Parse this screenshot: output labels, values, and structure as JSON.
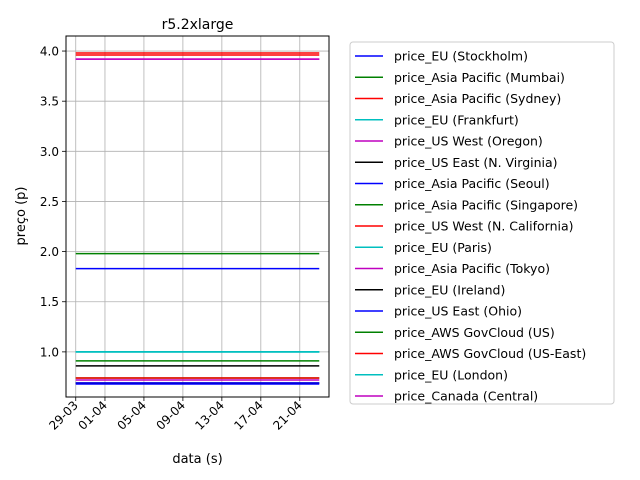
{
  "chart_data": {
    "type": "line",
    "title": "r5.2xlarge",
    "xlabel": "data (s)",
    "ylabel": "preço (p)",
    "x_range": [
      "2018-03-29",
      "2018-04-23"
    ],
    "xlim": [
      "2018-03-28",
      "2018-04-24"
    ],
    "ylim": [
      0.55,
      4.15
    ],
    "grid": true,
    "legend_position": "outside-right",
    "x_ticks": [
      {
        "date": "2018-03-29",
        "label": "29-03"
      },
      {
        "date": "2018-04-01",
        "label": "01-04"
      },
      {
        "date": "2018-04-05",
        "label": "05-04"
      },
      {
        "date": "2018-04-09",
        "label": "09-04"
      },
      {
        "date": "2018-04-13",
        "label": "13-04"
      },
      {
        "date": "2018-04-17",
        "label": "17-04"
      },
      {
        "date": "2018-04-21",
        "label": "21-04"
      }
    ],
    "y_ticks": [
      {
        "value": 1.0,
        "label": "1.0"
      },
      {
        "value": 1.5,
        "label": "1.5"
      },
      {
        "value": 2.0,
        "label": "2.0"
      },
      {
        "value": 2.5,
        "label": "2.5"
      },
      {
        "value": 3.0,
        "label": "3.0"
      },
      {
        "value": 3.5,
        "label": "3.5"
      },
      {
        "value": 4.0,
        "label": "4.0"
      }
    ],
    "series": [
      {
        "name": "price_EU (Stockholm)",
        "color": "#0000ff",
        "value": 0.68
      },
      {
        "name": "price_Asia Pacific (Mumbai)",
        "color": "#008000",
        "value": 0.74
      },
      {
        "name": "price_Asia Pacific (Sydney)",
        "color": "#ff0000",
        "value": 3.96
      },
      {
        "name": "price_EU (Frankfurt)",
        "color": "#00bfbf",
        "value": 1.0
      },
      {
        "name": "price_US West (Oregon)",
        "color": "#bf00bf",
        "value": 3.92
      },
      {
        "name": "price_US East (N. Virginia)",
        "color": "#000000",
        "value": 0.86
      },
      {
        "name": "price_Asia Pacific (Seoul)",
        "color": "#0000ff",
        "value": 1.83
      },
      {
        "name": "price_Asia Pacific (Singapore)",
        "color": "#008000",
        "value": 1.98
      },
      {
        "name": "price_US West (N. California)",
        "color": "#ff0000",
        "value": 3.98
      },
      {
        "name": "price_EU (Paris)",
        "color": "#00bfbf",
        "value": 1.0
      },
      {
        "name": "price_Asia Pacific (Tokyo)",
        "color": "#bf00bf",
        "value": 0.72
      },
      {
        "name": "price_EU (Ireland)",
        "color": "#000000",
        "value": 0.69
      },
      {
        "name": "price_US East (Ohio)",
        "color": "#0000ff",
        "value": 0.69
      },
      {
        "name": "price_AWS GovCloud (US)",
        "color": "#008000",
        "value": 0.91
      },
      {
        "name": "price_AWS GovCloud (US-East)",
        "color": "#ff0000",
        "value": 0.74
      },
      {
        "name": "price_EU (London)",
        "color": "#00bfbf",
        "value": 1.0
      },
      {
        "name": "price_Canada (Central)",
        "color": "#bf00bf",
        "value": 3.92
      }
    ]
  }
}
